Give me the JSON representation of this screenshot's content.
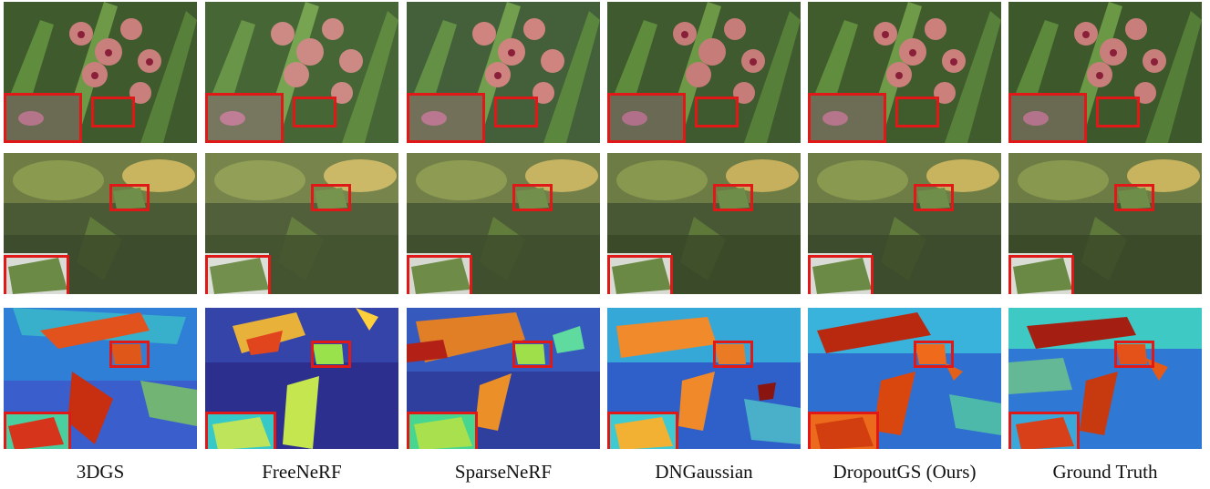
{
  "methods": [
    "3DGS",
    "FreeNeRF",
    "SparseNeRF",
    "DNGaussian",
    "DropoutGS (Ours)",
    "Ground Truth"
  ],
  "rows": [
    {
      "kind": "rgb-orchids"
    },
    {
      "kind": "rgb-leaves"
    },
    {
      "kind": "depth-leaves"
    }
  ],
  "colors": {
    "highlight_box": "#e01818",
    "depth_low": "#2b2f9a",
    "depth_mid": "#36c3d9",
    "depth_high": "#d83a12"
  }
}
